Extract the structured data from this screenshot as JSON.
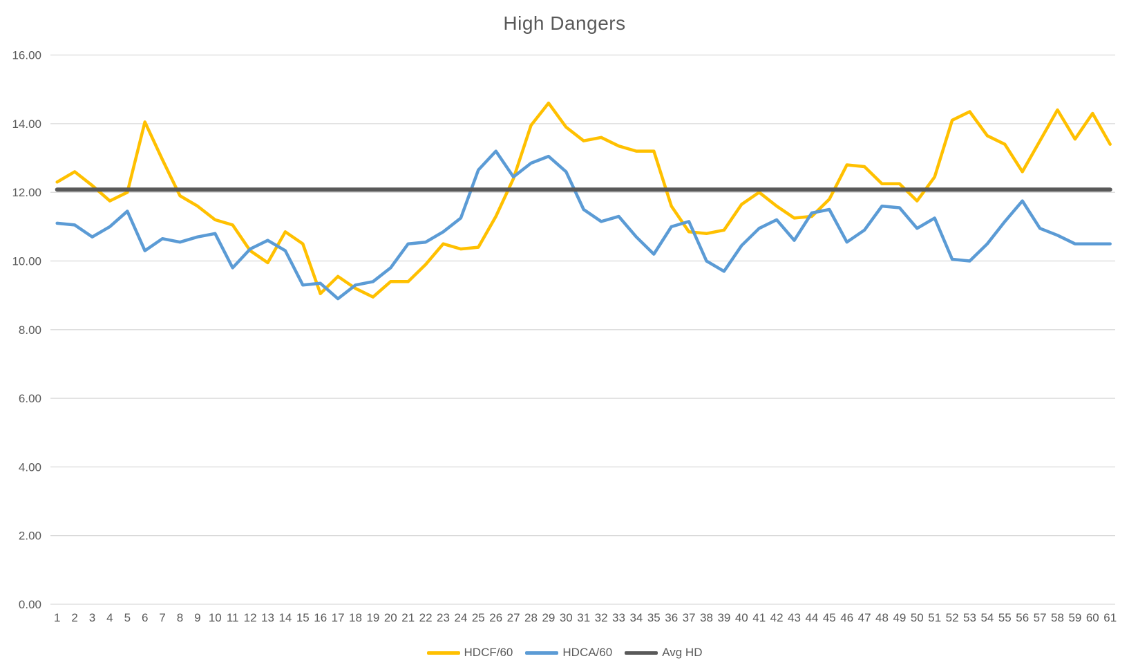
{
  "chart_data": {
    "type": "line",
    "title": "High Dangers",
    "xlabel": "",
    "ylabel": "",
    "ylim": [
      0,
      16
    ],
    "ytick_labels": [
      "0.00",
      "2.00",
      "4.00",
      "6.00",
      "8.00",
      "10.00",
      "12.00",
      "14.00",
      "16.00"
    ],
    "grid": "horizontal",
    "gridline_color": "#D9D9D9",
    "axis_text_color": "#595959",
    "legend_position": "bottom",
    "categories": [
      "1",
      "2",
      "3",
      "4",
      "5",
      "6",
      "7",
      "8",
      "9",
      "10",
      "11",
      "12",
      "13",
      "14",
      "15",
      "16",
      "17",
      "18",
      "19",
      "20",
      "21",
      "22",
      "23",
      "24",
      "25",
      "26",
      "27",
      "28",
      "29",
      "30",
      "31",
      "32",
      "33",
      "34",
      "35",
      "36",
      "37",
      "38",
      "39",
      "40",
      "41",
      "42",
      "43",
      "44",
      "45",
      "46",
      "47",
      "48",
      "49",
      "50",
      "51",
      "52",
      "53",
      "54",
      "55",
      "56",
      "57",
      "58",
      "59",
      "60",
      "61"
    ],
    "series": [
      {
        "name": "HDCF/60",
        "color": "#FFC000",
        "values": [
          12.3,
          12.6,
          12.2,
          11.75,
          12.0,
          14.05,
          12.95,
          11.9,
          11.6,
          11.2,
          11.05,
          10.3,
          9.95,
          10.85,
          10.5,
          9.05,
          9.55,
          9.2,
          8.95,
          9.4,
          9.4,
          9.9,
          10.5,
          10.35,
          10.4,
          11.3,
          12.4,
          13.95,
          14.6,
          13.9,
          13.5,
          13.6,
          13.35,
          13.2,
          13.2,
          11.6,
          10.85,
          10.8,
          10.9,
          11.65,
          12.0,
          11.6,
          11.25,
          11.3,
          11.8,
          12.8,
          12.75,
          12.25,
          12.25,
          11.75,
          12.45,
          14.1,
          14.35,
          13.65,
          13.4,
          12.6,
          13.5,
          14.4,
          13.55,
          14.3,
          13.4
        ]
      },
      {
        "name": "HDCA/60",
        "color": "#5B9BD5",
        "values": [
          11.1,
          11.05,
          10.7,
          11.0,
          11.45,
          10.3,
          10.65,
          10.55,
          10.7,
          10.8,
          9.8,
          10.35,
          10.6,
          10.3,
          9.3,
          9.35,
          8.9,
          9.3,
          9.4,
          9.8,
          10.5,
          10.55,
          10.85,
          11.25,
          12.65,
          13.2,
          12.45,
          12.85,
          13.05,
          12.6,
          11.5,
          11.15,
          11.3,
          10.7,
          10.2,
          11.0,
          11.15,
          10.0,
          9.7,
          10.45,
          10.95,
          11.2,
          10.6,
          11.4,
          11.5,
          10.55,
          10.9,
          11.6,
          11.55,
          10.95,
          11.25,
          10.05,
          10.0,
          10.5,
          11.15,
          11.75,
          10.95,
          10.75,
          10.5,
          10.5,
          10.5
        ]
      },
      {
        "name": "Avg HD",
        "color": "#595959",
        "constant": 12.08
      }
    ]
  }
}
